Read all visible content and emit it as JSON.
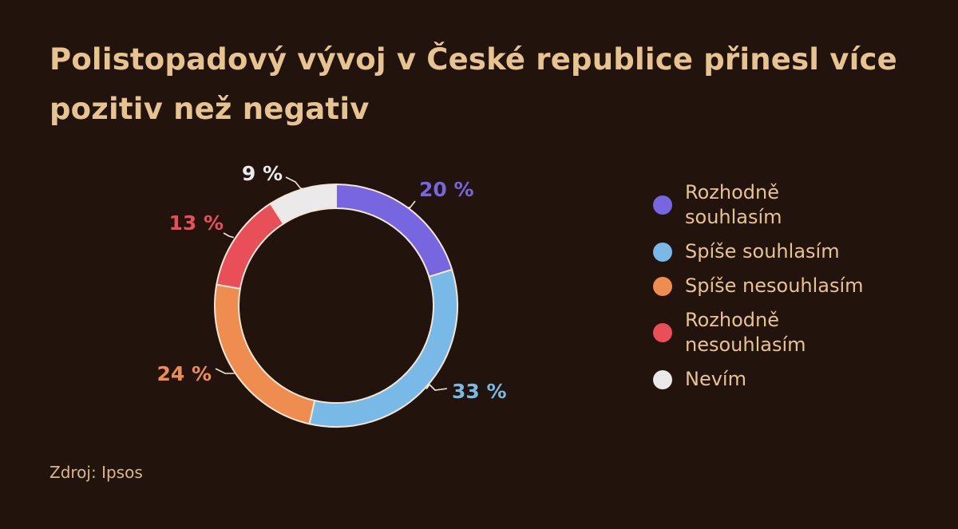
{
  "title": "Polistopadový vývoj v České republice přinesl více pozitiv než negativ",
  "source": "Zdroj: Ipsos",
  "colors": {
    "background": "#22130d",
    "title": "#e7c38f",
    "slice_border": "#f2e6d6"
  },
  "chart_data": {
    "type": "pie",
    "donut": true,
    "title": "Polistopadový vývoj v České republice přinesl více pozitiv než negativ",
    "legend_position": "right",
    "series": [
      {
        "name": "Rozhodně souhlasím",
        "value": 20,
        "label": "20 %",
        "color": "#7766e0"
      },
      {
        "name": "Spíše souhlasím",
        "value": 33,
        "label": "33 %",
        "color": "#79b9e8"
      },
      {
        "name": "Spíše nesouhlasím",
        "value": 24,
        "label": "24 %",
        "color": "#ee8d4f"
      },
      {
        "name": "Rozhodně nesouhlasím",
        "value": 13,
        "label": "13 %",
        "color": "#e84f58"
      },
      {
        "name": "Nevím",
        "value": 9,
        "label": "9 %",
        "color": "#ebe9e9"
      }
    ]
  }
}
